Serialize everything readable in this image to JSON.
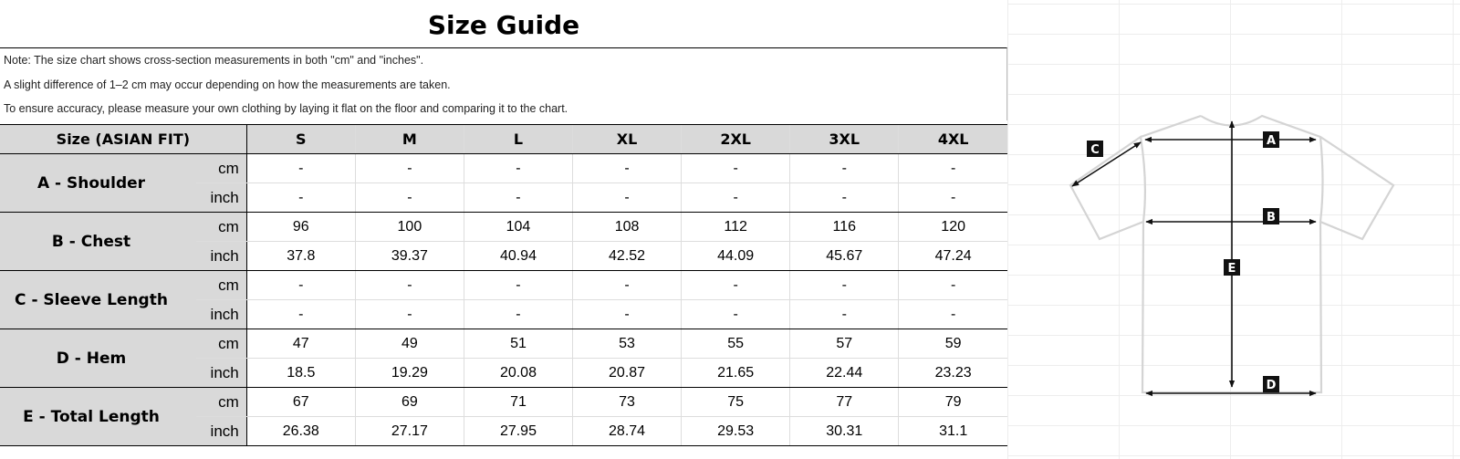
{
  "title": "Size Guide",
  "notes": [
    "Note: The size chart shows cross-section measurements in both \"cm\" and \"inches\".",
    "A slight difference of 1–2 cm may occur depending on how the measurements are taken.",
    "To ensure accuracy, please measure your own clothing by laying it flat on the floor and comparing it to the chart."
  ],
  "header": {
    "label": "Size (ASIAN FIT)",
    "sizes": [
      "S",
      "M",
      "L",
      "XL",
      "2XL",
      "3XL",
      "4XL"
    ]
  },
  "units": {
    "cm": "cm",
    "inch": "inch"
  },
  "rows": [
    {
      "label": "A - Shoulder",
      "cm": [
        "-",
        "-",
        "-",
        "-",
        "-",
        "-",
        "-"
      ],
      "inch": [
        "-",
        "-",
        "-",
        "-",
        "-",
        "-",
        "-"
      ]
    },
    {
      "label": "B - Chest",
      "cm": [
        "96",
        "100",
        "104",
        "108",
        "112",
        "116",
        "120"
      ],
      "inch": [
        "37.8",
        "39.37",
        "40.94",
        "42.52",
        "44.09",
        "45.67",
        "47.24"
      ]
    },
    {
      "label": "C - Sleeve Length",
      "cm": [
        "-",
        "-",
        "-",
        "-",
        "-",
        "-",
        "-"
      ],
      "inch": [
        "-",
        "-",
        "-",
        "-",
        "-",
        "-",
        "-"
      ]
    },
    {
      "label": "D - Hem",
      "cm": [
        "47",
        "49",
        "51",
        "53",
        "55",
        "57",
        "59"
      ],
      "inch": [
        "18.5",
        "19.29",
        "20.08",
        "20.87",
        "21.65",
        "22.44",
        "23.23"
      ]
    },
    {
      "label": "E - Total Length",
      "cm": [
        "67",
        "69",
        "71",
        "73",
        "75",
        "77",
        "79"
      ],
      "inch": [
        "26.38",
        "27.17",
        "27.95",
        "28.74",
        "29.53",
        "30.31",
        "31.1"
      ]
    }
  ],
  "diagram": {
    "labels": [
      "A",
      "B",
      "C",
      "D",
      "E"
    ]
  }
}
